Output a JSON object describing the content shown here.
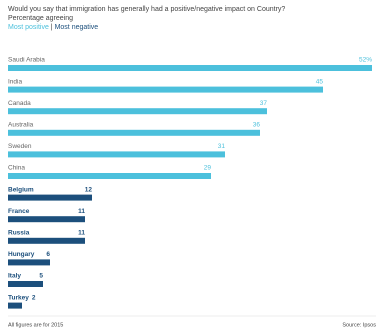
{
  "chart_data": {
    "type": "bar",
    "title": "Would you say that immigration has generally had a positive/negative impact on Country?",
    "subtitle": "Percentage agreeing",
    "categories": [
      "Saudi Arabia",
      "India",
      "Canada",
      "Australia",
      "Sweden",
      "China",
      "Belgium",
      "France",
      "Russia",
      "Hungary",
      "Italy",
      "Turkey"
    ],
    "series": [
      {
        "name": "Most positive",
        "color": "#4cc0dc",
        "values": [
          52,
          45,
          37,
          36,
          31,
          29,
          null,
          null,
          null,
          null,
          null,
          null
        ],
        "value_labels": [
          "52%",
          "45",
          "37",
          "36",
          "31",
          "29",
          null,
          null,
          null,
          null,
          null,
          null
        ]
      },
      {
        "name": "Most negative",
        "color": "#1c4f7c",
        "values": [
          null,
          null,
          null,
          null,
          null,
          null,
          12,
          11,
          11,
          6,
          5,
          2
        ]
      }
    ],
    "footnote": "All figures are for 2015",
    "source": "Source: Ipsos"
  }
}
